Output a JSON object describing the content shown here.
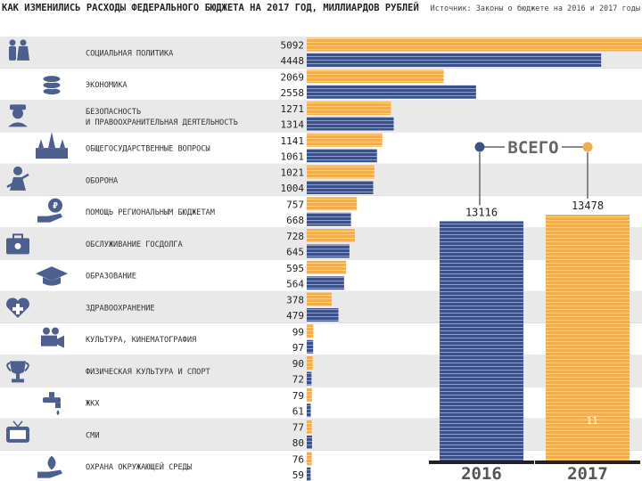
{
  "title": "КАК ИЗМЕНИЛИСЬ РАСХОДЫ ФЕДЕРАЛЬНОГО БЮДЖЕТА НА 2017 ГОД, МИЛЛИАРДОВ РУБЛЕЙ",
  "source": "Источник: Законы о бюджете на 2016 и 2017 годы",
  "colors": {
    "y2016": "#3d5189",
    "y2017": "#f0ae4e",
    "text": "#333333",
    "icon": "#4d5f8e",
    "band": "#e9e9e9"
  },
  "chart_data": [
    {
      "type": "bar",
      "orientation": "horizontal",
      "categories": [
        "СОЦИАЛЬНАЯ ПОЛИТИКА",
        "ЭКОНОМИКА",
        "БЕЗОПАСНОСТЬ И ПРАВООХРАНИТЕЛЬНАЯ ДЕЯТЕЛЬНОСТЬ",
        "ОБЩЕГОСУДАРСТВЕННЫЕ ВОПРОСЫ",
        "ОБОРОНА",
        "ПОМОЩЬ РЕГИОНАЛЬНЫМ БЮДЖЕТАМ",
        "ОБСЛУЖИВАНИЕ ГОСДОЛГА",
        "ОБРАЗОВАНИЕ",
        "ЗДРАВООХРАНЕНИЕ",
        "КУЛЬТУРА, КИНЕМАТОГРАФИЯ",
        "ФИЗИЧЕСКАЯ КУЛЬТУРА И СПОРТ",
        "ЖКХ",
        "СМИ",
        "ОХРАНА ОКРУЖАЮЩЕЙ СРЕДЫ"
      ],
      "icons": [
        "people-icon",
        "coins-icon",
        "police-icon",
        "kremlin-icon",
        "soldier-icon",
        "ruble-hand-icon",
        "briefcase-icon",
        "graduation-cap-icon",
        "heart-cross-icon",
        "camera-icon",
        "trophy-icon",
        "faucet-icon",
        "tv-icon",
        "eco-hand-icon"
      ],
      "series": [
        {
          "name": "2017",
          "values": [
            5092,
            2069,
            1271,
            1141,
            1021,
            757,
            728,
            595,
            378,
            99,
            90,
            79,
            77,
            76
          ]
        },
        {
          "name": "2016",
          "values": [
            4448,
            2558,
            1314,
            1061,
            1004,
            668,
            645,
            564,
            479,
            97,
            72,
            61,
            80,
            59
          ]
        }
      ]
    },
    {
      "type": "bar",
      "title": "ВСЕГО",
      "categories": [
        "2016",
        "2017"
      ],
      "values": [
        13116,
        13478
      ]
    }
  ],
  "page_number": "11"
}
